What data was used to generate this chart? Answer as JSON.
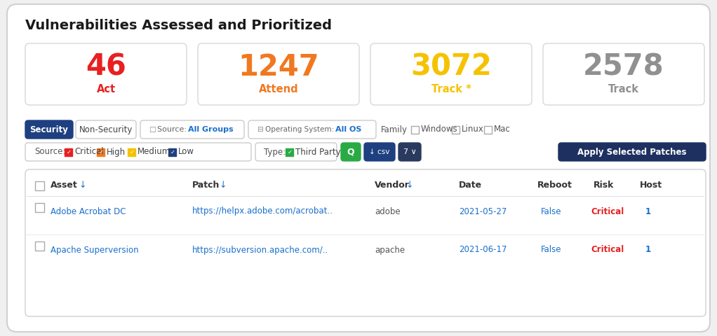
{
  "title": "Vulnerabilities Assessed and Prioritized",
  "bg_color": "#ffffff",
  "outer_border_color": "#d8d8d8",
  "cards": [
    {
      "value": "46",
      "label": "Act",
      "value_color": "#e82020",
      "label_color": "#e82020"
    },
    {
      "value": "1247",
      "label": "Attend",
      "value_color": "#f07820",
      "label_color": "#f07820"
    },
    {
      "value": "3072",
      "label": "Track *",
      "value_color": "#f5c200",
      "label_color": "#f5c200"
    },
    {
      "value": "2578",
      "label": "Track",
      "value_color": "#909090",
      "label_color": "#909090"
    }
  ],
  "security_btn_bg": "#1e4080",
  "security_btn_fg": "#ffffff",
  "filter_row2_sources": [
    {
      "label": "Critical",
      "color": "#e82020"
    },
    {
      "label": "High",
      "color": "#f07820"
    },
    {
      "label": "Medium",
      "color": "#f5c200"
    },
    {
      "label": "Low",
      "color": "#1e4080"
    }
  ],
  "apply_btn_text": "Apply Selected Patches",
  "apply_btn_bg": "#1e3060",
  "apply_btn_fg": "#ffffff",
  "search_btn_color": "#2aaa45",
  "csv_btn_color": "#1e4080",
  "num_btn_color": "#2a3a5e",
  "table_headers": [
    "Asset",
    "Patch",
    "Vendor",
    "Date",
    "Reboot",
    "Risk",
    "Host"
  ],
  "table_rows": [
    {
      "asset": "Adobe Acrobat DC",
      "patch": "https://helpx.adobe.com/acrobat..",
      "vendor": "adobe",
      "date": "2021-05-27",
      "reboot": "False",
      "risk": "Critical",
      "host": "1",
      "asset_color": "#1a6fcc",
      "patch_color": "#1a6fcc",
      "vendor_color": "#555555",
      "date_color": "#1a6fcc",
      "reboot_color": "#1a6fcc",
      "risk_color": "#e82020",
      "host_color": "#1a6fcc"
    },
    {
      "asset": "Apache Superversion",
      "patch": "https://subversion.apache.com/..",
      "vendor": "apache",
      "date": "2021-06-17",
      "reboot": "False",
      "risk": "Critical",
      "host": "1",
      "asset_color": "#1a6fcc",
      "patch_color": "#1a6fcc",
      "vendor_color": "#555555",
      "date_color": "#1a6fcc",
      "reboot_color": "#1a6fcc",
      "risk_color": "#e82020",
      "host_color": "#1a6fcc"
    }
  ]
}
